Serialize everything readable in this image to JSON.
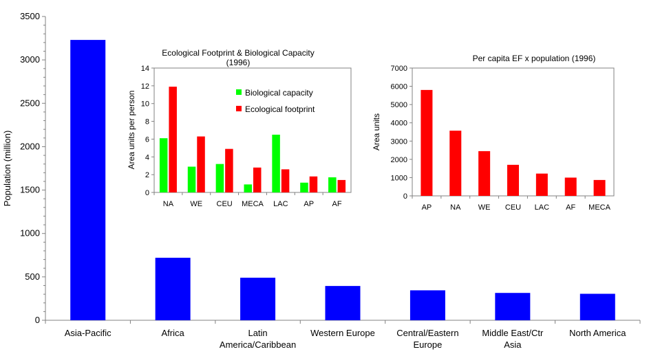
{
  "colors": {
    "main_bar": "#0000ff",
    "biological_capacity": "#00ff00",
    "ecological_footprint": "#ff0000",
    "per_capita_bar": "#ff0000",
    "axis": "#808080",
    "background": "#ffffff"
  },
  "chart_data": [
    {
      "type": "bar",
      "title": "",
      "xlabel": "",
      "ylabel": "Population (million)",
      "ylim": [
        0,
        3500
      ],
      "yticks": [
        0,
        500,
        1000,
        1500,
        2000,
        2500,
        3000,
        3500
      ],
      "categories": [
        "Asia-Pacific",
        "Africa",
        "Latin America/Caribbean",
        "Western Europe",
        "Central/Eastern Europe",
        "Middle East/Ctr Asia",
        "North America"
      ],
      "category_lines": [
        [
          "Asia-Pacific"
        ],
        [
          "Africa"
        ],
        [
          "Latin",
          "America/Caribbean"
        ],
        [
          "Western Europe"
        ],
        [
          "Central/Eastern",
          "Europe"
        ],
        [
          "Middle East/Ctr",
          "Asia"
        ],
        [
          "North America"
        ]
      ],
      "values": [
        3230,
        720,
        490,
        395,
        345,
        315,
        305
      ],
      "grid": false,
      "legend": "none"
    },
    {
      "type": "bar",
      "title_lines": [
        "Ecological Footprint & Biological Capacity",
        "(1996)"
      ],
      "xlabel": "",
      "ylabel": "Area units per person",
      "ylim": [
        0,
        14
      ],
      "yticks": [
        0,
        2,
        4,
        6,
        8,
        10,
        12,
        14
      ],
      "categories": [
        "NA",
        "WE",
        "CEU",
        "MECA",
        "LAC",
        "AP",
        "AF"
      ],
      "series": [
        {
          "name": "Biological capacity",
          "values": [
            6.1,
            2.9,
            3.2,
            0.9,
            6.5,
            1.1,
            1.7
          ]
        },
        {
          "name": "Ecological footprint",
          "values": [
            11.9,
            6.3,
            4.9,
            2.8,
            2.6,
            1.8,
            1.4
          ]
        }
      ],
      "grid": false,
      "legend": "top-right"
    },
    {
      "type": "bar",
      "title": "Per capita EF x population (1996)",
      "xlabel": "",
      "ylabel": "Area units",
      "ylim": [
        0,
        7000
      ],
      "yticks": [
        0,
        1000,
        2000,
        3000,
        4000,
        5000,
        6000,
        7000
      ],
      "categories": [
        "AP",
        "NA",
        "WE",
        "CEU",
        "LAC",
        "AF",
        "MECA"
      ],
      "values": [
        5800,
        3570,
        2450,
        1700,
        1220,
        1000,
        870
      ],
      "grid": false,
      "legend": "none"
    }
  ]
}
